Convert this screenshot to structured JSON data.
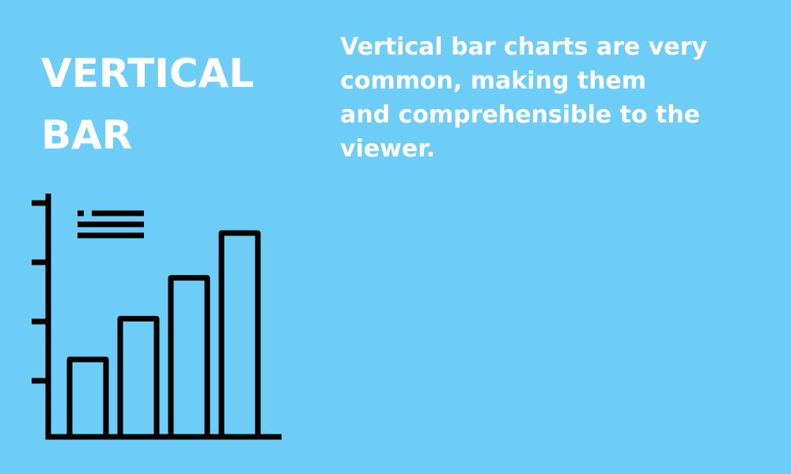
{
  "colors": {
    "background": "#6ecdf6",
    "text": "#ffffff",
    "icon_stroke": "#000000"
  },
  "title": {
    "lines": [
      "VERTICAL",
      "BAR"
    ]
  },
  "description": {
    "lines": [
      "Vertical bar charts are very",
      "common, making them",
      "and comprehensible to the",
      "viewer."
    ]
  },
  "icon": {
    "name": "bar-chart-icon",
    "bar_levels": [
      0.38,
      0.58,
      0.78,
      1.0
    ],
    "axis_tick_count": 4,
    "legend_line_count": 3
  }
}
